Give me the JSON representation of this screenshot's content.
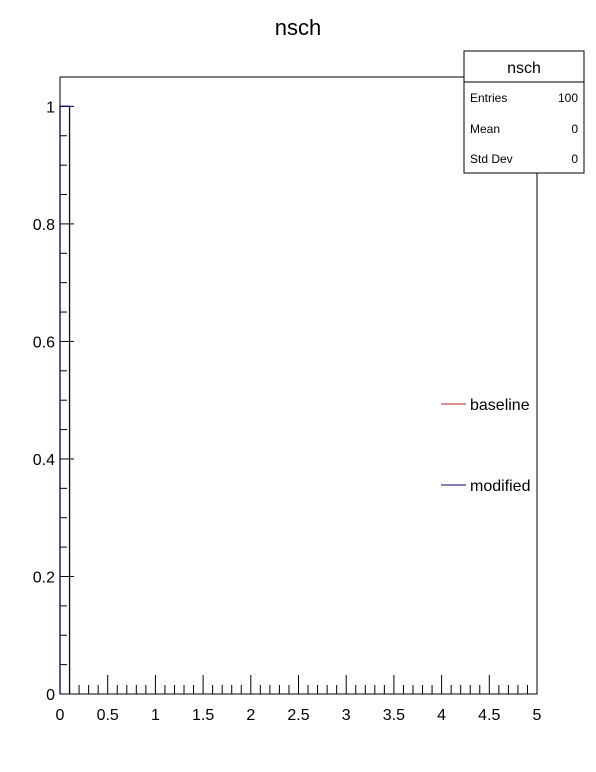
{
  "chart_data": {
    "type": "histogram",
    "title": "nsch",
    "xlim": [
      0,
      5
    ],
    "ylim": [
      0,
      1.05
    ],
    "x_ticks": [
      0,
      0.5,
      1,
      1.5,
      2,
      2.5,
      3,
      3.5,
      4,
      4.5,
      5
    ],
    "x_tick_labels": [
      "0",
      "0.5",
      "1",
      "1.5",
      "2",
      "2.5",
      "3",
      "3.5",
      "4",
      "4.5",
      "5"
    ],
    "y_ticks": [
      0,
      0.2,
      0.4,
      0.6,
      0.8,
      1
    ],
    "y_tick_labels": [
      "0",
      "0.2",
      "0.4",
      "0.6",
      "0.8",
      "1"
    ],
    "bin_width": 0.1,
    "series": [
      {
        "name": "baseline",
        "color": "#b22222",
        "bins": [
          {
            "x0": 0,
            "x1": 0.1,
            "y": 1
          }
        ]
      },
      {
        "name": "modified",
        "color": "#000080",
        "bins": [
          {
            "x0": 0,
            "x1": 0.1,
            "y": 1
          }
        ]
      }
    ],
    "stats_box": {
      "title": "nsch",
      "rows": [
        {
          "label": "Entries",
          "value": "100"
        },
        {
          "label": "Mean",
          "value": "0"
        },
        {
          "label": "Std Dev",
          "value": "0"
        }
      ]
    },
    "legend": {
      "placement": "right",
      "entries": [
        {
          "label": "baseline",
          "color": "#b22222"
        },
        {
          "label": "modified",
          "color": "#000080"
        }
      ]
    }
  }
}
